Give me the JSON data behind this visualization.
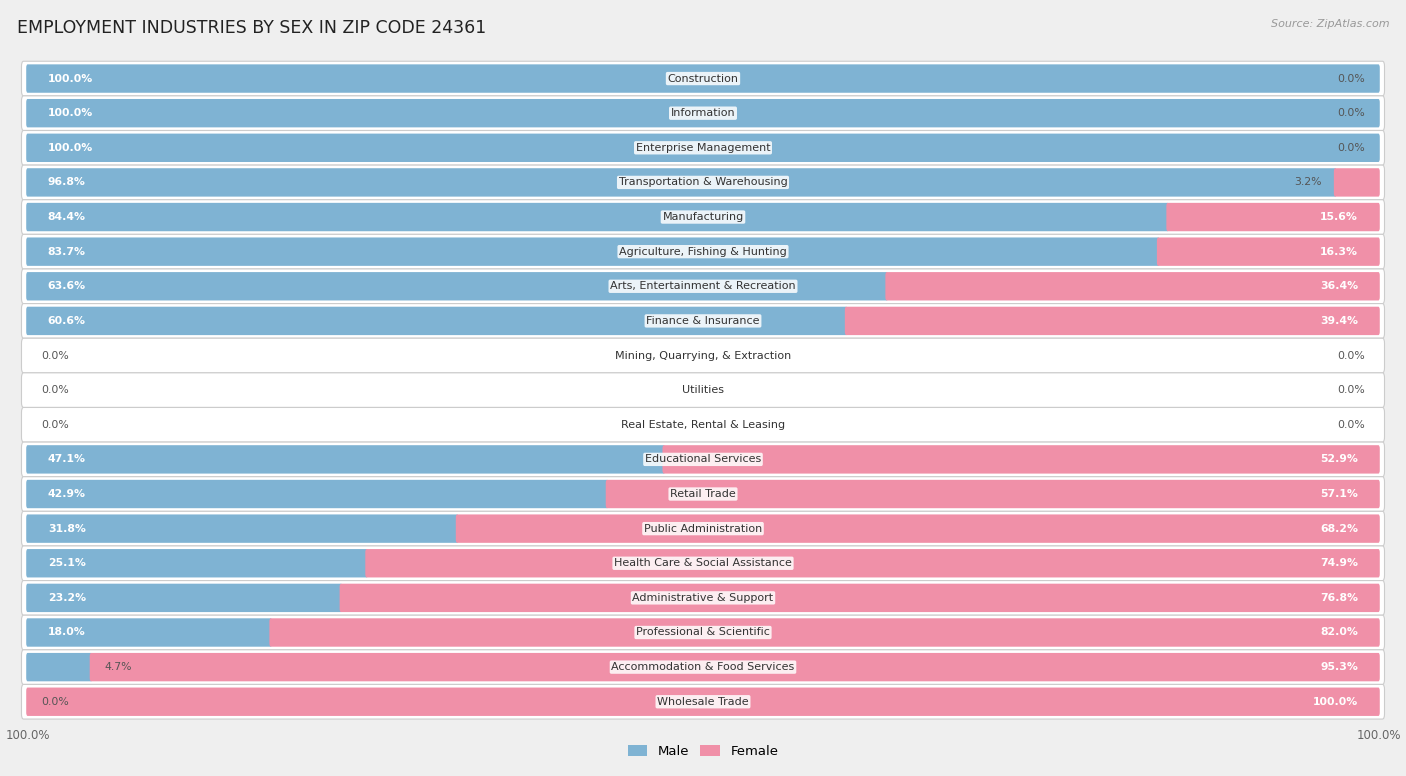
{
  "title": "EMPLOYMENT INDUSTRIES BY SEX IN ZIP CODE 24361",
  "source": "Source: ZipAtlas.com",
  "male_color": "#7fb3d3",
  "female_color": "#f090a8",
  "background_color": "#efefef",
  "row_bg_color": "#ffffff",
  "row_border_color": "#cccccc",
  "categories": [
    "Construction",
    "Information",
    "Enterprise Management",
    "Transportation & Warehousing",
    "Manufacturing",
    "Agriculture, Fishing & Hunting",
    "Arts, Entertainment & Recreation",
    "Finance & Insurance",
    "Mining, Quarrying, & Extraction",
    "Utilities",
    "Real Estate, Rental & Leasing",
    "Educational Services",
    "Retail Trade",
    "Public Administration",
    "Health Care & Social Assistance",
    "Administrative & Support",
    "Professional & Scientific",
    "Accommodation & Food Services",
    "Wholesale Trade"
  ],
  "male_pct": [
    100.0,
    100.0,
    100.0,
    96.8,
    84.4,
    83.7,
    63.6,
    60.6,
    0.0,
    0.0,
    0.0,
    47.1,
    42.9,
    31.8,
    25.1,
    23.2,
    18.0,
    4.7,
    0.0
  ],
  "female_pct": [
    0.0,
    0.0,
    0.0,
    3.2,
    15.6,
    16.3,
    36.4,
    39.4,
    0.0,
    0.0,
    0.0,
    52.9,
    57.1,
    68.2,
    74.9,
    76.8,
    82.0,
    95.3,
    100.0
  ]
}
